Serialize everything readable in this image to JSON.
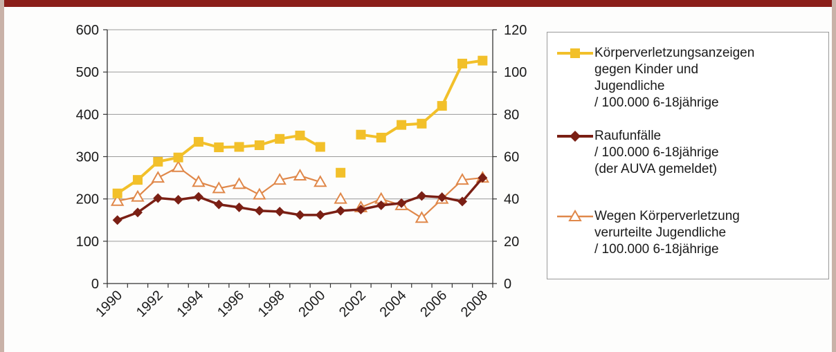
{
  "chart_data": {
    "type": "line",
    "x": [
      1990,
      1991,
      1992,
      1993,
      1994,
      1995,
      1996,
      1997,
      1998,
      1999,
      2000,
      2001,
      2002,
      2003,
      2004,
      2005,
      2006,
      2007,
      2008
    ],
    "x_tick_labels": [
      "1990",
      "1992",
      "1994",
      "1996",
      "1998",
      "2000",
      "2002",
      "2004",
      "2006",
      "2008"
    ],
    "y_left": {
      "ticks": [
        "0",
        "100",
        "200",
        "300",
        "400",
        "500",
        "600"
      ],
      "ylim": [
        0,
        600
      ]
    },
    "y_right": {
      "ticks": [
        "0",
        "20",
        "40",
        "60",
        "80",
        "100",
        "120"
      ],
      "ylim": [
        0,
        120
      ]
    },
    "grid": true,
    "legend_position": "right",
    "series": [
      {
        "name_lines": [
          "Körperverletzungsanzeigen",
          "gegen Kinder und",
          "Jugendliche",
          "/ 100.000 6-18jährige"
        ],
        "axis": "left",
        "color": "#f2c02a",
        "marker": "square",
        "values": [
          213,
          245,
          288,
          298,
          335,
          322,
          323,
          327,
          342,
          350,
          323,
          262,
          352,
          345,
          375,
          378,
          420,
          520,
          527
        ]
      },
      {
        "name_lines": [
          "Raufunfälle",
          "/ 100.000 6-18jährige",
          "(der AUVA gemeldet)"
        ],
        "axis": "left",
        "color": "#7a1f14",
        "marker": "diamond",
        "values": [
          150,
          168,
          202,
          198,
          205,
          187,
          180,
          172,
          170,
          162,
          162,
          172,
          175,
          185,
          190,
          207,
          204,
          194,
          250
        ]
      },
      {
        "name_lines": [
          "Wegen Körperverletzung",
          "verurteilte Jugendliche",
          "/ 100.000 6-18jährige"
        ],
        "axis": "right",
        "color": "#e0884a",
        "marker": "triangle",
        "values": [
          39,
          41,
          50,
          55,
          48,
          45,
          47,
          42,
          49,
          51,
          48,
          40,
          36,
          40,
          37,
          31,
          40,
          49,
          50
        ]
      }
    ]
  }
}
